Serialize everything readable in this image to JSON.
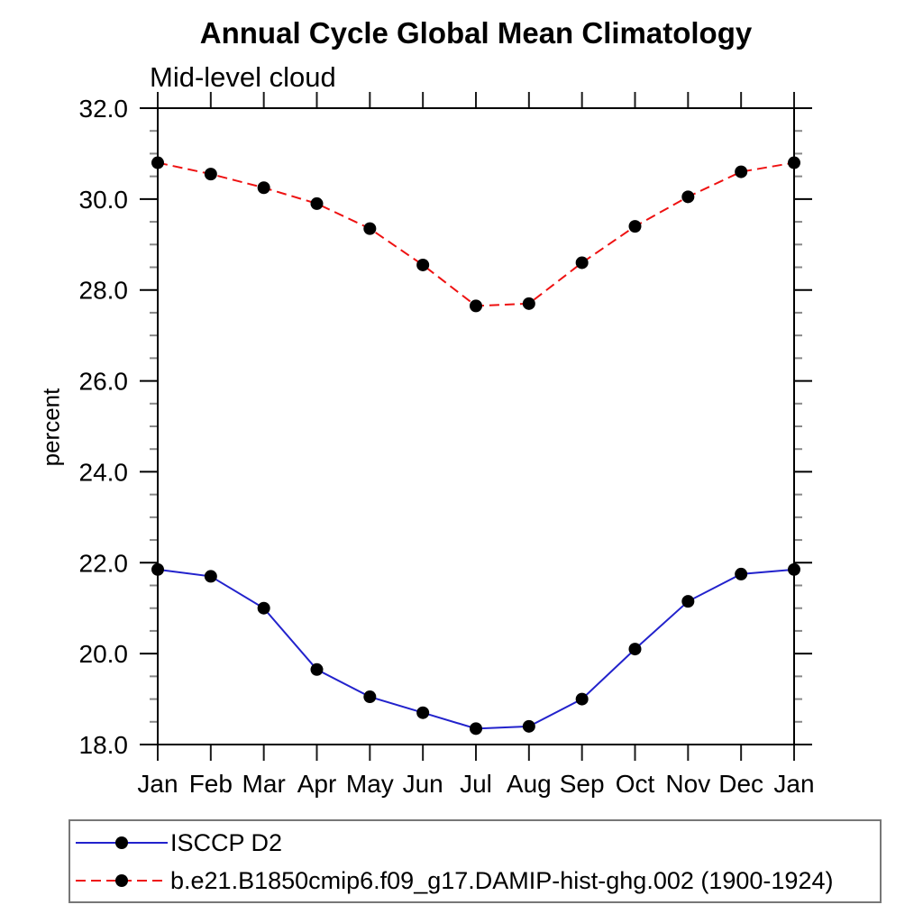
{
  "title": "Annual Cycle Global Mean Climatology",
  "subtitle": "Mid-level cloud",
  "ylabel": "percent",
  "colors": {
    "frame": "#000000",
    "major_tick": "#000000",
    "minor_tick": "#888888",
    "month_tick": "#1a1a1a",
    "marker": "#000000",
    "legend_border": "#777777",
    "background": "#ffffff"
  },
  "chart_data": {
    "type": "line",
    "title": "Annual Cycle Global Mean Climatology",
    "subtitle": "Mid-level cloud",
    "xlabel": "",
    "ylabel": "percent",
    "x_categories": [
      "Jan",
      "Feb",
      "Mar",
      "Apr",
      "May",
      "Jun",
      "Jul",
      "Aug",
      "Sep",
      "Oct",
      "Nov",
      "Dec",
      "Jan"
    ],
    "ylim": [
      18.0,
      32.0
    ],
    "ytick_major_interval": 2.0,
    "ytick_minor_interval": 0.5,
    "yticks": [
      {
        "v": 18,
        "label": "18.0"
      },
      {
        "v": 20,
        "label": "20.0"
      },
      {
        "v": 22,
        "label": "22.0"
      },
      {
        "v": 24,
        "label": "24.0"
      },
      {
        "v": 26,
        "label": "26.0"
      },
      {
        "v": 28,
        "label": "28.0"
      },
      {
        "v": 30,
        "label": "30.0"
      },
      {
        "v": 32,
        "label": "32.0"
      }
    ],
    "grid": false,
    "legend_position": "bottom-left-box",
    "series": [
      {
        "name": "ISCCP D2",
        "color": "#2222cc",
        "line_style": "solid",
        "marker": "filled-circle",
        "marker_color": "#000000",
        "values": [
          21.85,
          21.7,
          21.0,
          19.65,
          19.05,
          18.7,
          18.35,
          18.4,
          19.0,
          20.1,
          21.15,
          21.75,
          21.85
        ]
      },
      {
        "name": "b.e21.B1850cmip6.f09_g17.DAMIP-hist-ghg.002 (1900-1924)",
        "color": "#ee1111",
        "line_style": "dashed",
        "marker": "filled-circle",
        "marker_color": "#000000",
        "values": [
          30.8,
          30.55,
          30.25,
          29.9,
          29.35,
          28.55,
          27.65,
          27.7,
          28.6,
          29.4,
          30.05,
          30.6,
          30.8
        ]
      }
    ]
  }
}
